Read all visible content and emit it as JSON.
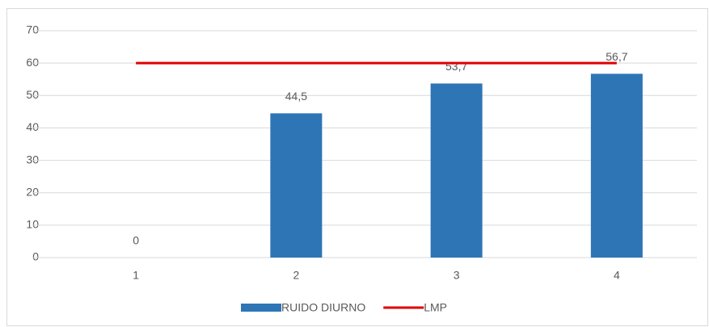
{
  "chart_data": {
    "type": "bar",
    "categories": [
      "1",
      "2",
      "3",
      "4"
    ],
    "series": [
      {
        "name": "RUIDO DIURNO",
        "color": "#2e75b6",
        "values": [
          0,
          44.5,
          53.7,
          56.7
        ],
        "value_labels": [
          "0",
          "44,5",
          "53,7",
          "56,7"
        ]
      },
      {
        "name": "LMP",
        "type": "line",
        "color": "#e00000",
        "values": [
          60,
          60,
          60,
          60
        ]
      }
    ],
    "ylim": [
      0,
      70
    ],
    "yticks": [
      0,
      10,
      20,
      30,
      40,
      50,
      60,
      70
    ],
    "grid": true,
    "legend": "bottom"
  }
}
